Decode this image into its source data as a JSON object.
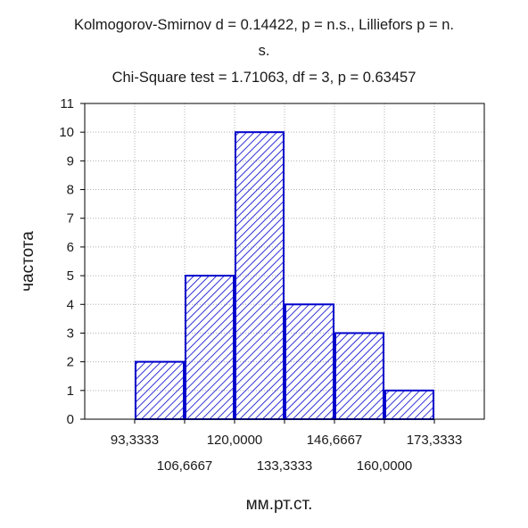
{
  "chart_data": {
    "type": "bar",
    "title_lines": [
      "Kolmogorov-Smirnov d = 0.14422, p = n.s., Lilliefors p = n.",
      "s.",
      "Chi-Square test = 1.71063, df = 3, p = 0.63457"
    ],
    "xlabel": "мм.рт.ст.",
    "ylabel": "частота",
    "bin_edges": [
      93.3333,
      106.6667,
      120.0,
      133.3333,
      146.6667,
      160.0,
      173.3333
    ],
    "values": [
      2,
      5,
      10,
      4,
      3,
      1
    ],
    "xlim": [
      80,
      186.6667
    ],
    "ylim": [
      0,
      11
    ],
    "y_ticks": [
      0,
      1,
      2,
      3,
      4,
      5,
      6,
      7,
      8,
      9,
      10,
      11
    ],
    "x_ticks_upper": [
      "93,3333",
      "120,0000",
      "146,6667",
      "173,3333"
    ],
    "x_ticks_upper_values": [
      93.3333,
      120.0,
      146.6667,
      173.3333
    ],
    "x_ticks_lower": [
      "106,6667",
      "133,3333",
      "160,0000"
    ],
    "x_ticks_lower_values": [
      106.6667,
      133.3333,
      160.0
    ],
    "grid": true,
    "colors": {
      "bar_stroke": "#0000cc",
      "hatch": "#0000cc",
      "axis": "#000000",
      "grid": "#b0b0b0"
    }
  }
}
